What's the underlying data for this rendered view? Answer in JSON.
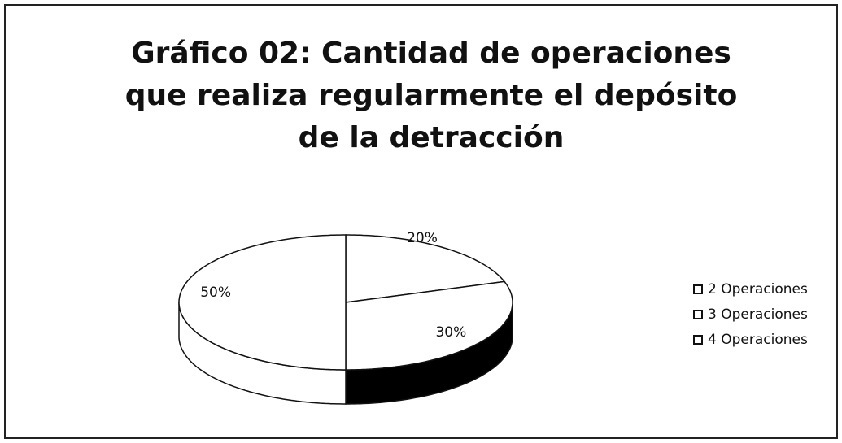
{
  "chart_data": {
    "type": "pie3d",
    "title": "Gráfico 02: Cantidad de operaciones que realiza regularmente el depósito de la detracción",
    "categories": [
      "2 Operaciones",
      "3 Operaciones",
      "4 Operaciones"
    ],
    "values": [
      20,
      30,
      50
    ],
    "value_labels": [
      "20%",
      "30%",
      "50%"
    ],
    "colors": [
      "#ffffff",
      "#ffffff",
      "#ffffff"
    ],
    "side_colors": [
      "#ffffff",
      "#000000",
      "#ffffff"
    ],
    "legend": "right"
  }
}
